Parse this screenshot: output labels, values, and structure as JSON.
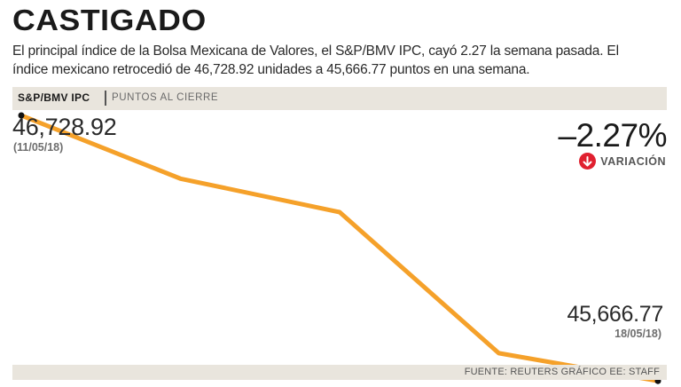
{
  "header": {
    "title": "CASTIGADO",
    "subtitle": "El principal índice de la Bolsa Mexicana de Valores, el S&P/BMV IPC, cayó 2.27 la semana pasada. El índice mexicano retrocedió de 46,728.92 unidades a 45,666.77 puntos en una semana."
  },
  "band": {
    "series_label": "S&P/BMV IPC",
    "unit_label": "PUNTOS AL CIERRE"
  },
  "labels": {
    "start_value": "46,728.92",
    "start_date": "(11/05/18)",
    "end_value": "45,666.77",
    "end_date": "18/05/18)",
    "variation": "–2.27%",
    "variation_label": "VARIACIÓN"
  },
  "colors": {
    "line": "#f5a12a",
    "point": "#111111",
    "accent": "#e0202f",
    "band": "#e9e5dd"
  },
  "chart_data": {
    "type": "line",
    "x": [
      "11/05/18",
      "",
      "",
      "",
      "18/05/18"
    ],
    "series": [
      {
        "values": [
          46728.92,
          46476,
          46342,
          45778,
          45666.77
        ]
      }
    ],
    "ylim": [
      45600,
      46800
    ],
    "grid": false
  },
  "footer": {
    "source": "FUENTE: REUTERS GRÁFICO EE: STAFF"
  }
}
